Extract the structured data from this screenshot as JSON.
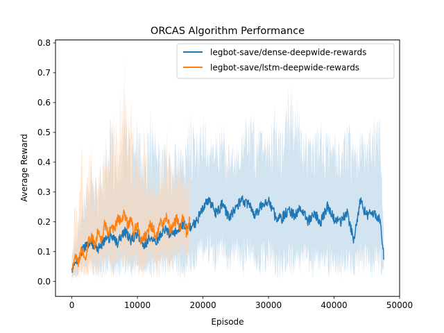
{
  "chart_data": {
    "type": "line",
    "title": "ORCAS Algorithm Performance",
    "xlabel": "Episode",
    "ylabel": "Average Reward",
    "xlim": [
      -2500,
      50000
    ],
    "ylim": [
      -0.05,
      0.81
    ],
    "xticks": [
      0,
      10000,
      20000,
      30000,
      40000,
      50000
    ],
    "yticks": [
      0.0,
      0.1,
      0.2,
      0.3,
      0.4,
      0.5,
      0.6,
      0.7,
      0.8
    ],
    "xtick_labels": [
      "0",
      "10000",
      "20000",
      "30000",
      "40000",
      "50000"
    ],
    "ytick_labels": [
      "0.0",
      "0.1",
      "0.2",
      "0.3",
      "0.4",
      "0.5",
      "0.6",
      "0.7",
      "0.8"
    ],
    "grid": false,
    "legend_position": "top-right",
    "series": [
      {
        "name": "legbot-save/dense-deepwide-rewards",
        "color": "#1f77b4",
        "band_color": "#aecde6",
        "band_opacity": 0.55,
        "x": [
          0,
          1000,
          2000,
          3000,
          4000,
          5000,
          6000,
          7000,
          8000,
          9000,
          10000,
          11000,
          12000,
          13000,
          14000,
          15000,
          16000,
          17000,
          18000,
          19000,
          20000,
          21000,
          22000,
          23000,
          24000,
          25000,
          26000,
          27000,
          28000,
          29000,
          30000,
          31000,
          32000,
          33000,
          34000,
          35000,
          36000,
          37000,
          38000,
          39000,
          40000,
          41000,
          42000,
          43000,
          44000,
          45000,
          46000,
          47000,
          47600
        ],
        "mean": [
          0.04,
          0.08,
          0.12,
          0.13,
          0.11,
          0.14,
          0.15,
          0.13,
          0.17,
          0.14,
          0.16,
          0.12,
          0.15,
          0.13,
          0.18,
          0.16,
          0.17,
          0.19,
          0.18,
          0.2,
          0.25,
          0.27,
          0.23,
          0.26,
          0.21,
          0.25,
          0.27,
          0.26,
          0.22,
          0.26,
          0.27,
          0.22,
          0.21,
          0.24,
          0.22,
          0.25,
          0.2,
          0.23,
          0.2,
          0.25,
          0.21,
          0.2,
          0.23,
          0.14,
          0.27,
          0.22,
          0.23,
          0.21,
          0.08
        ],
        "upper": [
          0.1,
          0.22,
          0.31,
          0.4,
          0.35,
          0.47,
          0.56,
          0.38,
          0.6,
          0.5,
          0.58,
          0.43,
          0.6,
          0.5,
          0.48,
          0.46,
          0.5,
          0.44,
          0.6,
          0.5,
          0.58,
          0.48,
          0.5,
          0.55,
          0.45,
          0.46,
          0.51,
          0.6,
          0.55,
          0.51,
          0.5,
          0.6,
          0.5,
          0.65,
          0.69,
          0.53,
          0.51,
          0.5,
          0.54,
          0.5,
          0.54,
          0.45,
          0.58,
          0.5,
          0.53,
          0.5,
          0.58,
          0.55,
          0.25
        ],
        "lower": [
          0.0,
          0.01,
          0.03,
          0.02,
          0.0,
          0.01,
          0.02,
          0.0,
          0.02,
          0.0,
          0.03,
          0.0,
          0.01,
          0.02,
          0.0,
          0.03,
          0.01,
          0.0,
          0.02,
          0.03,
          0.06,
          0.05,
          0.02,
          0.07,
          0.01,
          0.05,
          0.0,
          0.06,
          0.02,
          0.0,
          0.03,
          0.01,
          0.0,
          0.02,
          0.0,
          0.01,
          0.03,
          0.0,
          0.02,
          0.0,
          0.01,
          0.0,
          0.02,
          0.0,
          0.01,
          0.02,
          0.0,
          0.02,
          0.0
        ]
      },
      {
        "name": "legbot-save/lstm-deepwide-rewards",
        "color": "#ff7f0e",
        "band_color": "#ffd3ad",
        "band_opacity": 0.55,
        "x": [
          0,
          500,
          1000,
          1500,
          2000,
          2500,
          3000,
          3500,
          4000,
          4500,
          5000,
          5500,
          6000,
          6500,
          7000,
          7500,
          8000,
          8500,
          9000,
          9500,
          10000,
          10500,
          11000,
          11500,
          12000,
          12500,
          13000,
          13500,
          14000,
          14500,
          15000,
          15500,
          16000,
          16500,
          17000,
          17500,
          18000
        ],
        "mean": [
          0.03,
          0.09,
          0.06,
          0.11,
          0.07,
          0.13,
          0.15,
          0.12,
          0.17,
          0.14,
          0.19,
          0.16,
          0.18,
          0.17,
          0.21,
          0.2,
          0.23,
          0.19,
          0.21,
          0.17,
          0.19,
          0.13,
          0.15,
          0.16,
          0.19,
          0.17,
          0.15,
          0.2,
          0.19,
          0.22,
          0.17,
          0.19,
          0.21,
          0.18,
          0.22,
          0.16,
          0.21
        ],
        "upper": [
          0.09,
          0.28,
          0.24,
          0.49,
          0.26,
          0.43,
          0.47,
          0.3,
          0.44,
          0.37,
          0.49,
          0.4,
          0.56,
          0.6,
          0.5,
          0.7,
          0.77,
          0.55,
          0.63,
          0.38,
          0.56,
          0.35,
          0.6,
          0.37,
          0.39,
          0.46,
          0.35,
          0.45,
          0.33,
          0.57,
          0.44,
          0.41,
          0.4,
          0.42,
          0.38,
          0.33,
          0.43
        ],
        "lower": [
          0.0,
          0.0,
          0.01,
          0.0,
          0.02,
          0.0,
          0.01,
          0.03,
          0.0,
          0.04,
          0.02,
          0.05,
          0.0,
          0.03,
          0.06,
          0.04,
          0.03,
          0.0,
          0.02,
          0.05,
          0.0,
          0.02,
          0.0,
          0.04,
          0.03,
          0.05,
          0.0,
          0.04,
          0.06,
          0.03,
          0.0,
          0.08,
          0.04,
          0.06,
          0.09,
          0.05,
          0.1
        ]
      }
    ]
  }
}
